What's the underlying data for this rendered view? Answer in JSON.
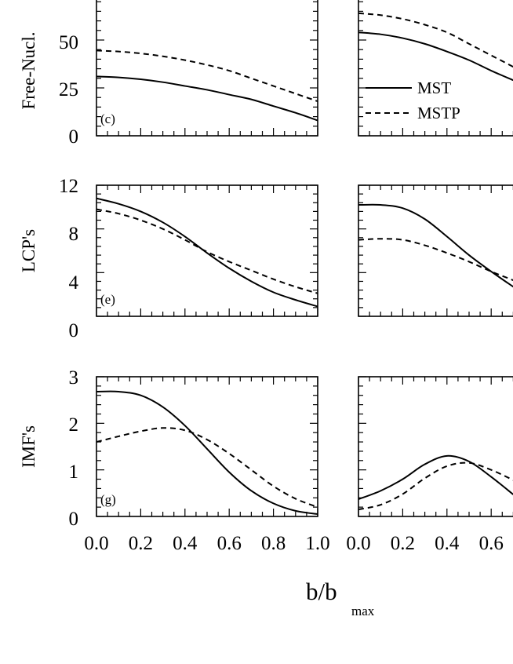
{
  "chart_data": [
    {
      "type": "line",
      "panel_label": "(c)",
      "ylabel": "Free-Nucl.",
      "ylim": [
        0,
        75
      ],
      "yticks": [
        "0",
        "25",
        "50"
      ],
      "xlim": [
        0,
        1
      ],
      "xticks": [
        "0.0",
        "0.2",
        "0.4",
        "0.6",
        "0.8",
        "1.0"
      ],
      "x": [
        0.0,
        0.1,
        0.2,
        0.3,
        0.4,
        0.5,
        0.6,
        0.7,
        0.8,
        0.9,
        1.0
      ],
      "series": [
        {
          "name": "MST",
          "style": "solid",
          "values": [
            31,
            30.5,
            29.5,
            28,
            26,
            24,
            21.5,
            19,
            15.5,
            12,
            8
          ]
        },
        {
          "name": "MSTP",
          "style": "dashed",
          "values": [
            44.5,
            44,
            43,
            41.5,
            39.5,
            37,
            34,
            30,
            26,
            22,
            18
          ]
        }
      ]
    },
    {
      "type": "line",
      "ylim": [
        0,
        75
      ],
      "xlim": [
        0,
        1
      ],
      "xticks": [
        "0.0",
        "0.2",
        "0.4",
        "0.6"
      ],
      "legend": {
        "position": "center-left",
        "entries": [
          "MST",
          "MSTP"
        ]
      },
      "x": [
        0.0,
        0.1,
        0.2,
        0.3,
        0.4,
        0.5,
        0.6,
        0.7
      ],
      "series": [
        {
          "name": "MST",
          "style": "solid",
          "values": [
            54,
            53,
            51,
            48,
            44,
            39.5,
            34,
            29
          ]
        },
        {
          "name": "MSTP",
          "style": "dashed",
          "values": [
            64,
            63,
            61,
            58,
            54,
            48,
            42,
            36
          ]
        }
      ]
    },
    {
      "type": "line",
      "panel_label": "(e)",
      "ylabel": "LCP's",
      "ylim": [
        0,
        12
      ],
      "yticks": [
        "0",
        "4",
        "8",
        "12"
      ],
      "xlim": [
        0,
        1
      ],
      "x": [
        0.0,
        0.1,
        0.2,
        0.3,
        0.4,
        0.5,
        0.6,
        0.7,
        0.8,
        0.9,
        1.0
      ],
      "series": [
        {
          "name": "MST",
          "style": "solid",
          "values": [
            10.8,
            10.3,
            9.6,
            8.6,
            7.3,
            5.8,
            4.4,
            3.2,
            2.2,
            1.5,
            0.9
          ]
        },
        {
          "name": "MSTP",
          "style": "dashed",
          "values": [
            9.8,
            9.4,
            8.8,
            8.0,
            7.0,
            5.9,
            5.0,
            4.2,
            3.4,
            2.7,
            2.1
          ]
        }
      ]
    },
    {
      "type": "line",
      "ylim": [
        0,
        12
      ],
      "xlim": [
        0,
        1
      ],
      "x": [
        0.0,
        0.1,
        0.2,
        0.3,
        0.4,
        0.5,
        0.6,
        0.7
      ],
      "series": [
        {
          "name": "MST",
          "style": "solid",
          "values": [
            10.2,
            10.2,
            9.9,
            8.9,
            7.3,
            5.6,
            4.1,
            2.7
          ]
        },
        {
          "name": "MSTP",
          "style": "dashed",
          "values": [
            7.0,
            7.1,
            7.0,
            6.5,
            5.8,
            5.0,
            4.1,
            3.3
          ]
        }
      ]
    },
    {
      "type": "line",
      "panel_label": "(g)",
      "ylabel": "IMF's",
      "ylim": [
        0,
        3
      ],
      "yticks": [
        "0",
        "1",
        "2",
        "3"
      ],
      "xlim": [
        0,
        1
      ],
      "x": [
        0.0,
        0.1,
        0.2,
        0.3,
        0.4,
        0.5,
        0.6,
        0.7,
        0.8,
        0.9,
        1.0
      ],
      "series": [
        {
          "name": "MST",
          "style": "solid",
          "values": [
            2.68,
            2.68,
            2.6,
            2.35,
            1.95,
            1.45,
            0.95,
            0.55,
            0.28,
            0.12,
            0.05
          ]
        },
        {
          "name": "MSTP",
          "style": "dashed",
          "values": [
            1.6,
            1.72,
            1.83,
            1.9,
            1.85,
            1.65,
            1.35,
            1.0,
            0.65,
            0.38,
            0.2
          ]
        }
      ]
    },
    {
      "type": "line",
      "ylim": [
        0,
        3
      ],
      "xlim": [
        0,
        1
      ],
      "x": [
        0.0,
        0.1,
        0.2,
        0.3,
        0.4,
        0.5,
        0.6,
        0.7
      ],
      "series": [
        {
          "name": "MST",
          "style": "solid",
          "values": [
            0.37,
            0.55,
            0.8,
            1.12,
            1.3,
            1.18,
            0.85,
            0.47
          ]
        },
        {
          "name": "MSTP",
          "style": "dashed",
          "values": [
            0.15,
            0.25,
            0.48,
            0.82,
            1.08,
            1.15,
            1.0,
            0.78
          ]
        }
      ]
    }
  ],
  "xlabel": {
    "main": "b/b",
    "sub": "max"
  }
}
